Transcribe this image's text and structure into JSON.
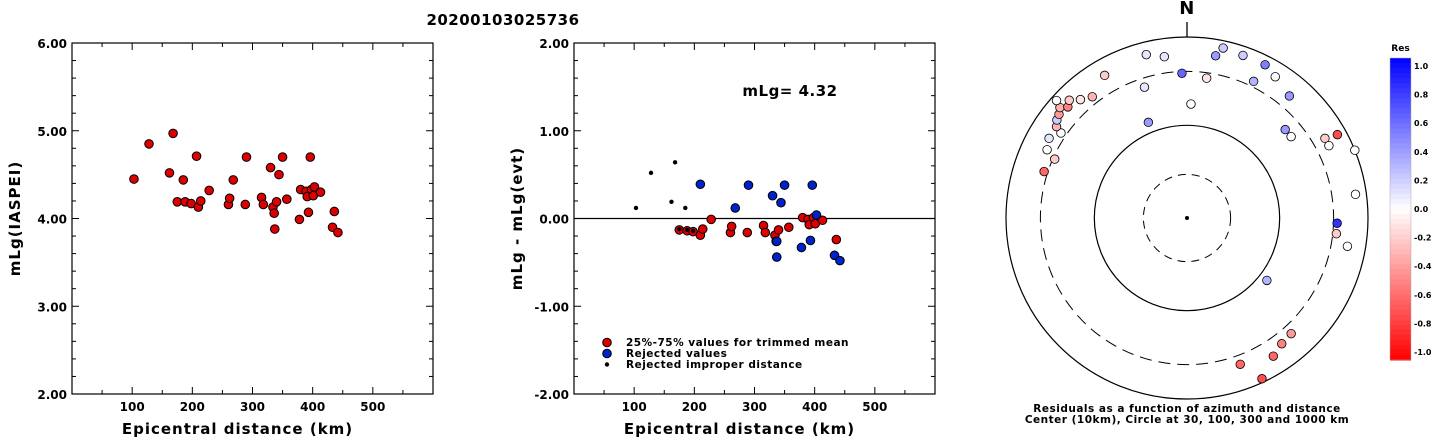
{
  "title": "20200103025736",
  "chart_data": [
    {
      "type": "scatter",
      "xlabel": "Epicentral distance (km)",
      "ylabel": "mLg(IASPEI)",
      "xlim": [
        0,
        600
      ],
      "ylim": [
        2.0,
        6.0
      ],
      "xticks": [
        "100",
        "200",
        "300",
        "400",
        "500"
      ],
      "yticks": [
        "2.00",
        "3.00",
        "4.00",
        "5.00",
        "6.00"
      ],
      "points": [
        [
          103,
          4.45
        ],
        [
          128,
          4.85
        ],
        [
          162,
          4.52
        ],
        [
          168,
          4.97
        ],
        [
          175,
          4.19
        ],
        [
          185,
          4.44
        ],
        [
          188,
          4.19
        ],
        [
          198,
          4.17
        ],
        [
          207,
          4.71
        ],
        [
          210,
          4.13
        ],
        [
          214,
          4.2
        ],
        [
          228,
          4.32
        ],
        [
          260,
          4.16
        ],
        [
          262,
          4.23
        ],
        [
          268,
          4.44
        ],
        [
          288,
          4.16
        ],
        [
          290,
          4.7
        ],
        [
          315,
          4.24
        ],
        [
          318,
          4.16
        ],
        [
          330,
          4.58
        ],
        [
          334,
          4.13
        ],
        [
          336,
          4.06
        ],
        [
          337,
          3.88
        ],
        [
          340,
          4.19
        ],
        [
          344,
          4.5
        ],
        [
          350,
          4.7
        ],
        [
          357,
          4.22
        ],
        [
          378,
          3.99
        ],
        [
          380,
          4.33
        ],
        [
          389,
          4.31
        ],
        [
          391,
          4.25
        ],
        [
          393,
          4.07
        ],
        [
          396,
          4.7
        ],
        [
          398,
          4.33
        ],
        [
          401,
          4.26
        ],
        [
          403,
          4.36
        ],
        [
          413,
          4.3
        ],
        [
          433,
          3.9
        ],
        [
          436,
          4.08
        ],
        [
          442,
          3.84
        ]
      ]
    },
    {
      "type": "scatter",
      "xlabel": "Epicentral distance (km)",
      "ylabel": "mLg - mLg(evt)",
      "xlim": [
        0,
        600
      ],
      "ylim": [
        -2.0,
        2.0
      ],
      "xticks": [
        "100",
        "200",
        "300",
        "400",
        "500"
      ],
      "yticks": [
        "-2.00",
        "-1.00",
        "0.00",
        "1.00",
        "2.00"
      ],
      "annotation": "mLg= 4.32",
      "reference_line": 0.0,
      "legend": [
        "25%-75% values for trimmed mean",
        "Rejected values",
        "Rejected improper distance"
      ],
      "colors": {
        "trimmed": "#dd0000",
        "rejected": "#0022cc",
        "improper": "#000000"
      },
      "series": [
        {
          "name": "25%-75% values for trimmed mean",
          "points": [
            [
              175,
              -0.13
            ],
            [
              188,
              -0.14
            ],
            [
              198,
              -0.15
            ],
            [
              210,
              -0.19
            ],
            [
              214,
              -0.12
            ],
            [
              228,
              -0.01
            ],
            [
              260,
              -0.16
            ],
            [
              262,
              -0.09
            ],
            [
              288,
              -0.16
            ],
            [
              315,
              -0.08
            ],
            [
              318,
              -0.16
            ],
            [
              334,
              -0.19
            ],
            [
              336,
              -0.26
            ],
            [
              340,
              -0.13
            ],
            [
              357,
              -0.1
            ],
            [
              380,
              0.01
            ],
            [
              389,
              -0.01
            ],
            [
              391,
              -0.07
            ],
            [
              398,
              0.01
            ],
            [
              401,
              -0.06
            ],
            [
              413,
              -0.02
            ],
            [
              436,
              -0.24
            ]
          ]
        },
        {
          "name": "Rejected values",
          "points": [
            [
              210,
              0.39
            ],
            [
              268,
              0.12
            ],
            [
              290,
              0.38
            ],
            [
              330,
              0.26
            ],
            [
              337,
              -0.44
            ],
            [
              344,
              0.18
            ],
            [
              350,
              0.38
            ],
            [
              337,
              -0.26
            ],
            [
              378,
              -0.33
            ],
            [
              393,
              -0.25
            ],
            [
              396,
              0.38
            ],
            [
              403,
              0.04
            ],
            [
              433,
              -0.42
            ],
            [
              442,
              -0.48
            ]
          ]
        },
        {
          "name": "Rejected improper distance",
          "points": [
            [
              103,
              0.12
            ],
            [
              128,
              0.52
            ],
            [
              162,
              0.19
            ],
            [
              168,
              0.64
            ],
            [
              185,
              0.12
            ],
            [
              175,
              -0.12
            ],
            [
              188,
              -0.13
            ],
            [
              198,
              -0.14
            ]
          ]
        }
      ]
    },
    {
      "type": "scatter",
      "title": "N",
      "caption_line1": "Residuals as a function of azimuth and distance",
      "caption_line2": "Center (10km), Circle at 30, 100, 300 and 1000 km",
      "colorbar_label": "Res",
      "colorbar_ticks": [
        "1.0",
        "0.8",
        "0.6",
        "0.4",
        "0.2",
        "0.0",
        "-0.2",
        "-0.4",
        "-0.6",
        "-0.8",
        "-1.0"
      ],
      "ring_radius_fraction": {
        "dash_inner": 0.241,
        "solid_mid": 0.512,
        "dash_outer": 0.81,
        "solid_outer": 1.0
      },
      "points": [
        {
          "az": 288,
          "r": 0.83,
          "res": -0.6
        },
        {
          "az": 294,
          "r": 0.8,
          "res": -0.2
        },
        {
          "az": 296,
          "r": 0.86,
          "res": 0.0
        },
        {
          "az": 300,
          "r": 0.88,
          "res": 0.1
        },
        {
          "az": 304,
          "r": 0.84,
          "res": 0.0
        },
        {
          "az": 305,
          "r": 0.88,
          "res": -0.3
        },
        {
          "az": 307,
          "r": 0.9,
          "res": 0.2
        },
        {
          "az": 309,
          "r": 0.91,
          "res": -0.4
        },
        {
          "az": 311,
          "r": 0.93,
          "res": -0.3
        },
        {
          "az": 312,
          "r": 0.97,
          "res": 0.0
        },
        {
          "az": 313,
          "r": 0.9,
          "res": -0.5
        },
        {
          "az": 315,
          "r": 0.92,
          "res": -0.2
        },
        {
          "az": 318,
          "r": 0.88,
          "res": -0.1
        },
        {
          "az": 322,
          "r": 0.85,
          "res": -0.3
        },
        {
          "az": 330,
          "r": 0.91,
          "res": -0.2
        },
        {
          "az": 338,
          "r": 0.57,
          "res": 0.4
        },
        {
          "az": 342,
          "r": 0.76,
          "res": 0.1
        },
        {
          "az": 346,
          "r": 0.93,
          "res": 0.1
        },
        {
          "az": 352,
          "r": 0.9,
          "res": 0.1
        },
        {
          "az": 358,
          "r": 0.8,
          "res": 0.6
        },
        {
          "az": 2,
          "r": 0.63,
          "res": 0.0
        },
        {
          "az": 8,
          "r": 0.78,
          "res": -0.1
        },
        {
          "az": 10,
          "r": 0.91,
          "res": 0.4
        },
        {
          "az": 12,
          "r": 0.96,
          "res": 0.2
        },
        {
          "az": 19,
          "r": 0.95,
          "res": 0.2
        },
        {
          "az": 26,
          "r": 0.84,
          "res": 0.3
        },
        {
          "az": 27,
          "r": 0.95,
          "res": 0.5
        },
        {
          "az": 32,
          "r": 0.92,
          "res": 0.0
        },
        {
          "az": 40,
          "r": 0.88,
          "res": 0.4
        },
        {
          "az": 48,
          "r": 0.73,
          "res": 0.4
        },
        {
          "az": 52,
          "r": 0.73,
          "res": 0.0
        },
        {
          "az": 60,
          "r": 0.88,
          "res": -0.2
        },
        {
          "az": 61,
          "r": 0.95,
          "res": -0.7
        },
        {
          "az": 63,
          "r": 0.88,
          "res": 0.0
        },
        {
          "az": 68,
          "r": 1.0,
          "res": 0.0
        },
        {
          "az": 82,
          "r": 0.94,
          "res": 0.0
        },
        {
          "az": 92,
          "r": 0.83,
          "res": 0.8
        },
        {
          "az": 96,
          "r": 0.83,
          "res": -0.2
        },
        {
          "az": 100,
          "r": 0.9,
          "res": 0.0
        },
        {
          "az": 128,
          "r": 0.56,
          "res": 0.3
        },
        {
          "az": 138,
          "r": 0.86,
          "res": -0.4
        },
        {
          "az": 143,
          "r": 0.87,
          "res": -0.5
        },
        {
          "az": 148,
          "r": 0.9,
          "res": -0.6
        },
        {
          "az": 155,
          "r": 0.98,
          "res": -0.7
        },
        {
          "az": 160,
          "r": 0.86,
          "res": -0.6
        }
      ]
    }
  ]
}
